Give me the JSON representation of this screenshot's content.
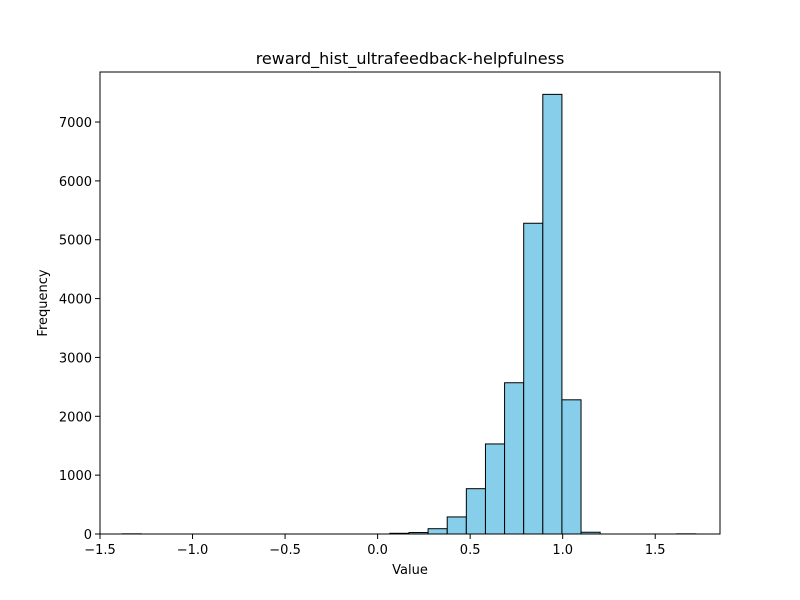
{
  "chart_data": {
    "type": "bar",
    "subtype": "histogram",
    "title": "reward_hist_ultrafeedback-helpfulness",
    "xlabel": "Value",
    "ylabel": "Frequency",
    "xlim": [
      -1.5,
      1.85
    ],
    "ylim": [
      0,
      7850
    ],
    "x_ticks": [
      -1.5,
      -1.0,
      -0.5,
      0.0,
      0.5,
      1.0,
      1.5
    ],
    "x_tick_labels": [
      "−1.5",
      "−1.0",
      "−0.5",
      "0.0",
      "0.5",
      "1.0",
      "1.5"
    ],
    "y_ticks": [
      0,
      1000,
      2000,
      3000,
      4000,
      5000,
      6000,
      7000
    ],
    "y_tick_labels": [
      "0",
      "1000",
      "2000",
      "3000",
      "4000",
      "5000",
      "6000",
      "7000"
    ],
    "bin_start": -1.38,
    "bin_width": 0.1033,
    "bins": 30,
    "values": [
      3,
      0,
      0,
      0,
      0,
      0,
      0,
      0,
      0,
      0,
      0,
      0,
      0,
      0,
      12,
      25,
      90,
      290,
      770,
      1530,
      2570,
      5280,
      7470,
      2280,
      30,
      0,
      0,
      0,
      0,
      3
    ],
    "bar_color": "#87ceeb",
    "edge_color": "#000000",
    "grid": false,
    "legend": "none"
  }
}
